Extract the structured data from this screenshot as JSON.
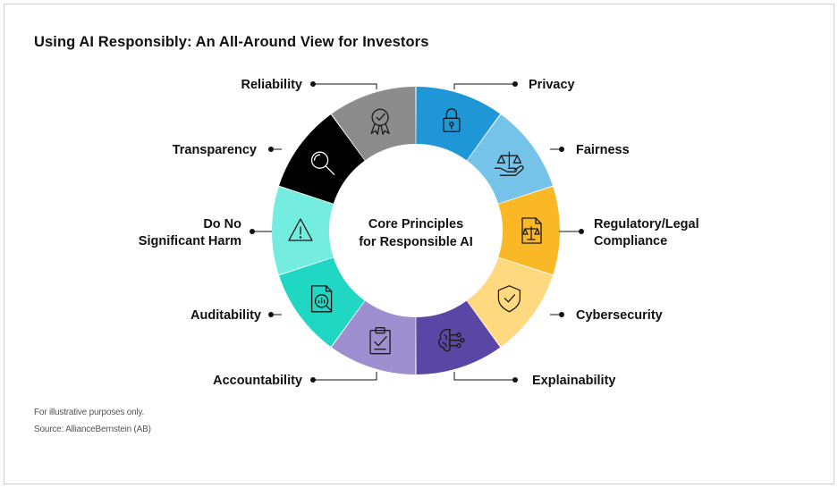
{
  "title": "Using AI Responsibly: An All-Around View for Investors",
  "center": {
    "line1": "Core Principles",
    "line2": "for Responsible AI"
  },
  "principles": [
    {
      "label": [
        "Privacy"
      ],
      "color": "#1f96d6",
      "icon": "lock-icon"
    },
    {
      "label": [
        "Fairness"
      ],
      "color": "#76c3ea",
      "icon": "scales-hand-icon"
    },
    {
      "label": [
        "Regulatory/Legal",
        "Compliance"
      ],
      "color": "#fbb826",
      "icon": "legal-document-icon"
    },
    {
      "label": [
        "Cybersecurity"
      ],
      "color": "#ffd97f",
      "icon": "shield-check-icon"
    },
    {
      "label": [
        "Explainability"
      ],
      "color": "#5a47a5",
      "icon": "brain-circuit-icon"
    },
    {
      "label": [
        "Accountability"
      ],
      "color": "#9d8fd0",
      "icon": "clipboard-check-icon"
    },
    {
      "label": [
        "Auditability"
      ],
      "color": "#1fd7c2",
      "icon": "audit-report-icon"
    },
    {
      "label": [
        "Do No",
        "Significant Harm"
      ],
      "color": "#74ece0",
      "icon": "warning-icon"
    },
    {
      "label": [
        "Transparency"
      ],
      "color": "#000000",
      "icon": "magnifier-icon"
    },
    {
      "label": [
        "Reliability"
      ],
      "color": "#8c8c8c",
      "icon": "award-icon"
    }
  ],
  "footnote": "For illustrative purposes only.",
  "source": "Source: AllianceBernstein (AB)"
}
